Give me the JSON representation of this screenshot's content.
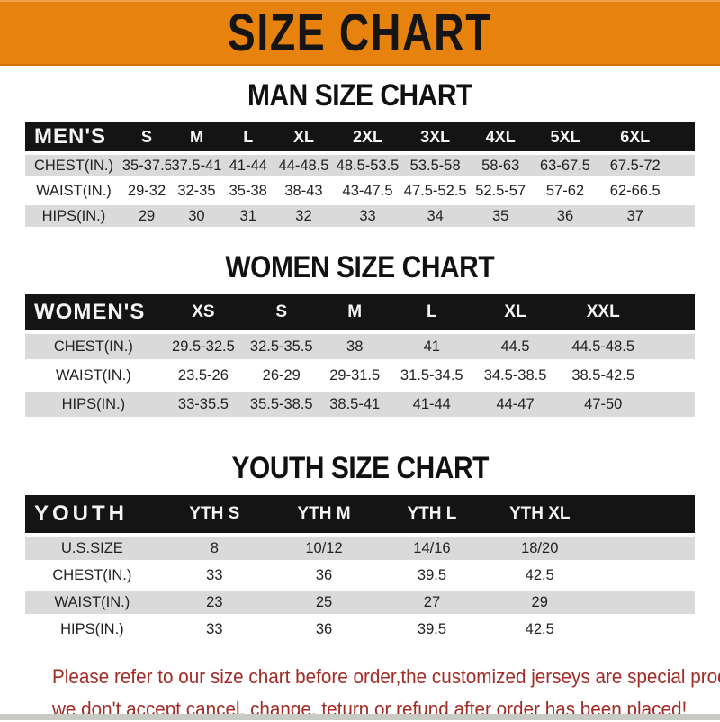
{
  "banner": {
    "title": "SIZE CHART",
    "bg_color": "#E8820F",
    "text_color": "#151515"
  },
  "sections": [
    {
      "title": "MAN SIZE CHART",
      "header_label": "MEN'S",
      "columns": [
        "S",
        "M",
        "L",
        "XL",
        "2XL",
        "3XL",
        "4XL",
        "5XL",
        "6XL"
      ],
      "rows": [
        {
          "label": "CHEST(IN.)",
          "values": [
            "35-37.5",
            "37.5-41",
            "41-44",
            "44-48.5",
            "48.5-53.5",
            "53.5-58",
            "58-63",
            "63-67.5",
            "67.5-72"
          ]
        },
        {
          "label": "WAIST(IN.)",
          "values": [
            "29-32",
            "32-35",
            "35-38",
            "38-43",
            "43-47.5",
            "47.5-52.5",
            "52.5-57",
            "57-62",
            "62-66.5"
          ]
        },
        {
          "label": "HIPS(IN.)",
          "values": [
            "29",
            "30",
            "31",
            "32",
            "33",
            "34",
            "35",
            "36",
            "37"
          ]
        }
      ]
    },
    {
      "title": "WOMEN SIZE CHART",
      "header_label": "WOMEN'S",
      "columns": [
        "XS",
        "S",
        "M",
        "L",
        "XL",
        "XXL"
      ],
      "rows": [
        {
          "label": "CHEST(IN.)",
          "values": [
            "29.5-32.5",
            "32.5-35.5",
            "38",
            "41",
            "44.5",
            "44.5-48.5"
          ]
        },
        {
          "label": "WAIST(IN.)",
          "values": [
            "23.5-26",
            "26-29",
            "29-31.5",
            "31.5-34.5",
            "34.5-38.5",
            "38.5-42.5"
          ]
        },
        {
          "label": "HIPS(IN.)",
          "values": [
            "33-35.5",
            "35.5-38.5",
            "38.5-41",
            "41-44",
            "44-47",
            "47-50"
          ]
        }
      ]
    },
    {
      "title": "YOUTH SIZE CHART",
      "header_label": "YOUTH",
      "columns": [
        "YTH S",
        "YTH M",
        "YTH L",
        "YTH XL"
      ],
      "rows": [
        {
          "label": "U.S.SIZE",
          "values": [
            "8",
            "10/12",
            "14/16",
            "18/20"
          ]
        },
        {
          "label": "CHEST(IN.)",
          "values": [
            "33",
            "36",
            "39.5",
            "42.5"
          ]
        },
        {
          "label": "WAIST(IN.)",
          "values": [
            "23",
            "25",
            "27",
            "29"
          ]
        },
        {
          "label": "HIPS(IN.)",
          "values": [
            "33",
            "36",
            "39.5",
            "42.5"
          ]
        }
      ]
    }
  ],
  "footer": {
    "line1": "Please refer to our size chart before order,the customized jerseys are special products,",
    "line2": "we don't accept cancel, change, teturn or refund after order has been placed!",
    "text_color": "#A32B26"
  },
  "colors": {
    "header_bar": "#141414",
    "row_gray": "#DADADA",
    "row_white": "#FFFFFF",
    "banner_orange": "#E8820F"
  }
}
